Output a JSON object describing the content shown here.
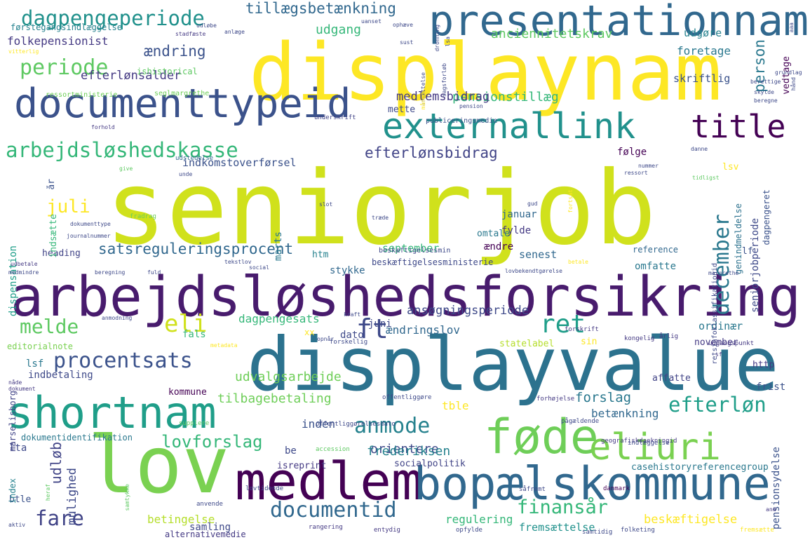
{
  "word_cloud": {
    "words": [
      {
        "text": "seniorjob",
        "color": "#d0e11c"
      },
      {
        "text": "displaynam",
        "color": "#fde725"
      },
      {
        "text": "displayvalue",
        "color": "#2c728e"
      },
      {
        "text": "arbejdsløshedsforsikring",
        "color": "#481b6d"
      },
      {
        "text": "lov",
        "color": "#7ad151"
      },
      {
        "text": "medlem",
        "color": "#440154"
      },
      {
        "text": "bopælskommune",
        "color": "#31688e"
      },
      {
        "text": "shortnam",
        "color": "#1f9e89"
      },
      {
        "text": "føde",
        "color": "#6ece58"
      },
      {
        "text": "eliuri",
        "color": "#7ad151"
      },
      {
        "text": "presentationnam",
        "color": "#31688e"
      },
      {
        "text": "documenttypeid",
        "color": "#3b528b"
      },
      {
        "text": "externallink",
        "color": "#21918c"
      },
      {
        "text": "title",
        "color": "#440154"
      },
      {
        "text": "arbejdsløshedskasse",
        "color": "#35b779"
      },
      {
        "text": "dagpengeperiode",
        "color": "#21918c"
      },
      {
        "text": "periode",
        "color": "#5ec962"
      },
      {
        "text": "procentsats",
        "color": "#3b528b"
      },
      {
        "text": "anmode",
        "color": "#26828e"
      },
      {
        "text": "efterløn",
        "color": "#1f9e89"
      },
      {
        "text": "documentid",
        "color": "#31688e"
      },
      {
        "text": "finansår",
        "color": "#35b779"
      },
      {
        "text": "fare",
        "color": "#414487"
      },
      {
        "text": "melde",
        "color": "#5ec962"
      },
      {
        "text": "eli",
        "color": "#d0e11c"
      },
      {
        "text": "ret",
        "color": "#1f9e89"
      },
      {
        "text": "ft",
        "color": "#3e4989"
      },
      {
        "text": "lovforslag",
        "color": "#35b779"
      },
      {
        "text": "december",
        "color": "#2a788e"
      },
      {
        "text": "juli",
        "color": "#fde725"
      },
      {
        "text": "tillægsbetænkning",
        "color": "#31688e"
      },
      {
        "text": "satsreguleringsprocent",
        "color": "#31688e"
      },
      {
        "text": "efterlønsbidrag",
        "color": "#414487"
      },
      {
        "text": "ændring",
        "color": "#3b528b"
      },
      {
        "text": "person",
        "color": "#2a788e"
      },
      {
        "text": "anciennitetskrav",
        "color": "#5ec962"
      },
      {
        "text": "udgang",
        "color": "#35b779"
      },
      {
        "text": "pensionstillæg",
        "color": "#35b779"
      },
      {
        "text": "medlemsbidrag",
        "color": "#443983"
      },
      {
        "text": "efterlønsalder",
        "color": "#443983"
      },
      {
        "text": "folkepensionist",
        "color": "#443983"
      },
      {
        "text": "indkomstoverførsel",
        "color": "#3b528b"
      },
      {
        "text": "udvalgsarbejde",
        "color": "#6ece58"
      },
      {
        "text": "tilbagebetaling",
        "color": "#6ece58"
      },
      {
        "text": "orientere",
        "color": "#3e4989"
      },
      {
        "text": "forslag",
        "color": "#2a788e"
      },
      {
        "text": "betænkning",
        "color": "#31688e"
      },
      {
        "text": "frederiksen",
        "color": "#26828e"
      },
      {
        "text": "inden",
        "color": "#3b528b"
      },
      {
        "text": "udløb",
        "color": "#414487"
      },
      {
        "text": "mulighed",
        "color": "#3e4989"
      },
      {
        "text": "betingelse",
        "color": "#b5de2b"
      },
      {
        "text": "beskæftigelse",
        "color": "#fde725"
      },
      {
        "text": "regulering",
        "color": "#35b779"
      },
      {
        "text": "fremsættelse",
        "color": "#21918c"
      },
      {
        "text": "pensionsydelse",
        "color": "#3b528b"
      },
      {
        "text": "seniorjobperiode",
        "color": "#3e4989"
      },
      {
        "text": "dagpengesats",
        "color": "#35b779"
      },
      {
        "text": "ansøgningsperiode",
        "color": "#3e4989"
      },
      {
        "text": "ændringslov",
        "color": "#31688e"
      },
      {
        "text": "heading",
        "color": "#414487"
      },
      {
        "text": "stykke",
        "color": "#31688e"
      },
      {
        "text": "september",
        "color": "#35b779"
      },
      {
        "text": "senest",
        "color": "#31688e"
      },
      {
        "text": "januar",
        "color": "#31688e"
      },
      {
        "text": "fylde",
        "color": "#443983"
      },
      {
        "text": "omtale",
        "color": "#2a788e"
      },
      {
        "text": "ændre",
        "color": "#440154"
      },
      {
        "text": "kommune",
        "color": "#440154"
      },
      {
        "text": "dispensation",
        "color": "#1f9e89"
      },
      {
        "text": "indsætte",
        "color": "#35b779"
      },
      {
        "text": "dagpengeret",
        "color": "#3b528b"
      },
      {
        "text": "genindmeldelse",
        "color": "#2c728e"
      },
      {
        "text": "ordinær",
        "color": "#2a788e"
      },
      {
        "text": "november",
        "color": "#443983"
      },
      {
        "text": "udgøre",
        "color": "#26828e"
      },
      {
        "text": "foretage",
        "color": "#2a788e"
      },
      {
        "text": "skriftlig",
        "color": "#3b528b"
      },
      {
        "text": "vedtage",
        "color": "#440154"
      },
      {
        "text": "følge",
        "color": "#440154"
      },
      {
        "text": "mette",
        "color": "#3e4989"
      },
      {
        "text": "dato",
        "color": "#3e4989"
      },
      {
        "text": "juni",
        "color": "#3e4989"
      },
      {
        "text": "fals",
        "color": "#35b779"
      },
      {
        "text": "tble",
        "color": "#fde725"
      },
      {
        "text": "statelabel",
        "color": "#b5de2b"
      },
      {
        "text": "omfatte",
        "color": "#2a788e"
      },
      {
        "text": "reference",
        "color": "#31688e"
      },
      {
        "text": "marts",
        "color": "#2a788e"
      },
      {
        "text": "htm",
        "color": "#26828e"
      },
      {
        "text": "frist",
        "color": "#3b528b"
      },
      {
        "text": "http",
        "color": "#443983"
      },
      {
        "text": "lsv",
        "color": "#fde725"
      },
      {
        "text": "år",
        "color": "#3b528b"
      },
      {
        "text": "lf",
        "color": "#3b528b"
      },
      {
        "text": "sin",
        "color": "#fde725"
      },
      {
        "text": "xx",
        "color": "#fde725"
      },
      {
        "text": "lsf",
        "color": "#2a788e"
      },
      {
        "text": "lta",
        "color": "#3e4989"
      },
      {
        "text": "be",
        "color": "#3e4989"
      },
      {
        "text": "btle",
        "color": "#3b528b"
      },
      {
        "text": "index",
        "color": "#26828e"
      },
      {
        "text": "samling",
        "color": "#3e4989"
      },
      {
        "text": "alternativemedie",
        "color": "#443983"
      },
      {
        "text": "indbetaling",
        "color": "#3e4989"
      },
      {
        "text": "marselisborg",
        "color": "#414487"
      },
      {
        "text": "editorialnote",
        "color": "#7ad151"
      },
      {
        "text": "affatte",
        "color": "#414487"
      },
      {
        "text": "socialpolitik",
        "color": "#414487"
      },
      {
        "text": "isreprint",
        "color": "#443983"
      },
      {
        "text": "casehistoryreferencegroup",
        "color": "#2a788e"
      },
      {
        "text": "dokumentidentifikation",
        "color": "#2a788e"
      },
      {
        "text": "beskæftigelsesministerie",
        "color": "#3e4989"
      },
      {
        "text": "beskæftigelsesmin",
        "color": "#3e4989"
      },
      {
        "text": "retsinfoklassifikationid",
        "color": "#3e4989"
      },
      {
        "text": "publiceringsmedie",
        "color": "#3b528b"
      },
      {
        "text": "førstegangsindlæggelse",
        "color": "#26828e"
      },
      {
        "text": "ishistorical",
        "color": "#5ec962"
      },
      {
        "text": "ressortministerie",
        "color": "#6ece58"
      },
      {
        "text": "seglmargrethe",
        "color": "#6ece58"
      },
      {
        "text": "underskrift",
        "color": "#414487"
      },
      {
        "text": "udstedelse",
        "color": "#31688e"
      },
      {
        "text": "journalnummer",
        "color": "#3e4989"
      },
      {
        "text": "dokumenttype",
        "color": "#3e4989"
      },
      {
        "text": "fradrag",
        "color": "#6ece58"
      },
      {
        "text": "lovbekendtgørelse",
        "color": "#3e4989"
      },
      {
        "text": "offentliggørelsesdato",
        "color": "#3e4989"
      },
      {
        "text": "geografiskdaekningid",
        "color": "#443983"
      },
      {
        "text": "offentliggøre",
        "color": "#3e4989"
      },
      {
        "text": "forhøjelse",
        "color": "#443983"
      },
      {
        "text": "pågældende",
        "color": "#3e4989"
      },
      {
        "text": "indlæggelse",
        "color": "#3e4989"
      },
      {
        "text": "udgangspunkt",
        "color": "#443983"
      },
      {
        "text": "forskellig",
        "color": "#3e4989"
      },
      {
        "text": "forskrift",
        "color": "#443983"
      },
      {
        "text": "kongelig",
        "color": "#443983"
      },
      {
        "text": "årlig",
        "color": "#443983"
      },
      {
        "text": "accession",
        "color": "#5ec962"
      },
      {
        "text": "supplere",
        "color": "#5ec962"
      },
      {
        "text": "lovtidende",
        "color": "#3e4989"
      },
      {
        "text": "anvende",
        "color": "#3e4989"
      },
      {
        "text": "rangering",
        "color": "#443983"
      },
      {
        "text": "entydig",
        "color": "#443983"
      },
      {
        "text": "opfylde",
        "color": "#3e4989"
      },
      {
        "text": "folketing",
        "color": "#3e4989"
      },
      {
        "text": "samtidig",
        "color": "#3e4989"
      },
      {
        "text": "fremsætte",
        "color": "#fde725"
      },
      {
        "text": "danmark",
        "color": "#440154"
      },
      {
        "text": "såfremt",
        "color": "#3e4989"
      },
      {
        "text": "and",
        "color": "#443983"
      },
      {
        "text": "aktiv",
        "color": "#3e4989"
      },
      {
        "text": "heraf",
        "color": "#5ec962"
      },
      {
        "text": "samtykke",
        "color": "#5ec962"
      },
      {
        "text": "udbetale",
        "color": "#443983"
      },
      {
        "text": "medmindre",
        "color": "#3e4989"
      },
      {
        "text": "beregning",
        "color": "#3e4989"
      },
      {
        "text": "fuld",
        "color": "#3e4989"
      },
      {
        "text": "tekstlov",
        "color": "#3e4989"
      },
      {
        "text": "social",
        "color": "#3e4989"
      },
      {
        "text": "margrethe",
        "color": "#3e4989"
      },
      {
        "text": "anmodning",
        "color": "#3e4989"
      },
      {
        "text": "kraft",
        "color": "#3e4989"
      },
      {
        "text": "opnår",
        "color": "#3e4989"
      },
      {
        "text": "metadata",
        "color": "#fde725"
      },
      {
        "text": "nåde",
        "color": "#443983"
      },
      {
        "text": "dokument",
        "color": "#443983"
      },
      {
        "text": "sf",
        "color": "#443983"
      },
      {
        "text": "slot",
        "color": "#3e4989"
      },
      {
        "text": "træde",
        "color": "#3e4989"
      },
      {
        "text": "gud",
        "color": "#3e4989"
      },
      {
        "text": "fortsat",
        "color": "#fde725"
      },
      {
        "text": "betale",
        "color": "#fde725"
      },
      {
        "text": "danne",
        "color": "#3e4989"
      },
      {
        "text": "nummer",
        "color": "#3e4989"
      },
      {
        "text": "tidligst",
        "color": "#5ec962"
      },
      {
        "text": "ressort",
        "color": "#3e4989"
      },
      {
        "text": "give",
        "color": "#5ec962"
      },
      {
        "text": "unde",
        "color": "#3e4989"
      },
      {
        "text": "forhold",
        "color": "#443983"
      },
      {
        "text": "stadfæste",
        "color": "#443983"
      },
      {
        "text": "anlæge",
        "color": "#3e4989"
      },
      {
        "text": "vitterlig",
        "color": "#fde725"
      },
      {
        "text": "udløbe",
        "color": "#3e4989"
      },
      {
        "text": "uanset",
        "color": "#3e4989"
      },
      {
        "text": "ophæve",
        "color": "#3e4989"
      },
      {
        "text": "dronning",
        "color": "#3e4989"
      },
      {
        "text": "sagsforløb",
        "color": "#3e4989"
      },
      {
        "text": "ansættelse",
        "color": "#3e4989"
      },
      {
        "text": "måned",
        "color": "#fde725"
      },
      {
        "text": "pension",
        "color": "#3e4989"
      },
      {
        "text": "skylde",
        "color": "#3e4989"
      },
      {
        "text": "beregne",
        "color": "#3e4989"
      },
      {
        "text": "berettige",
        "color": "#3e4989"
      },
      {
        "text": "grundlag",
        "color": "#3e4989"
      },
      {
        "text": "hånd",
        "color": "#3e4989"
      },
      {
        "text": "aaa",
        "color": "#3e4989"
      },
      {
        "text": "sust",
        "color": "#3e4989"
      },
      {
        "text": "lsa",
        "color": "#3e4989"
      }
    ]
  }
}
